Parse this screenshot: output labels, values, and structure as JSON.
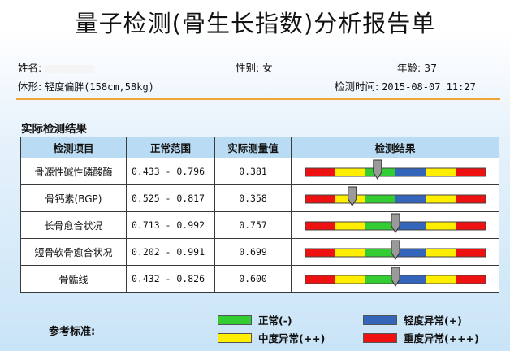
{
  "title": "量子检测(骨生长指数)分析报告单",
  "info": {
    "name_label": "姓名:",
    "gender": "性别: 女",
    "age": "年龄: 37",
    "body_label": "体形:",
    "body_value": "轻度偏胖(158cm,58kg)",
    "time_label": "检测时间:",
    "time_value": "2015-08-07 11:27"
  },
  "section_title": "实际检测结果",
  "table": {
    "headers": [
      "检测项目",
      "正常范围",
      "实际测量值",
      "检测结果"
    ],
    "rows": [
      {
        "item": "骨源性碱性磷酸酶",
        "range": "0.433 - 0.796",
        "value": "0.381",
        "marker": 0.4
      },
      {
        "item": "骨钙素(BGP)",
        "range": "0.525 - 0.817",
        "value": "0.358",
        "marker": 0.26
      },
      {
        "item": "长骨愈合状况",
        "range": "0.713 - 0.992",
        "value": "0.757",
        "marker": 0.5
      },
      {
        "item": "短骨软骨愈合状况",
        "range": "0.202 - 0.991",
        "value": "0.699",
        "marker": 0.5
      },
      {
        "item": "骨骺线",
        "range": "0.432 - 0.826",
        "value": "0.600",
        "marker": 0.5
      }
    ]
  },
  "gauge_colors": [
    "#ee1111",
    "#ffee00",
    "#33cc33",
    "#3366bb",
    "#ffee00",
    "#ee1111"
  ],
  "legend": {
    "label": "参考标准:",
    "items": [
      {
        "label": "正常(-)",
        "color": "#33cc33"
      },
      {
        "label": "轻度异常(+)",
        "color": "#3366bb"
      },
      {
        "label": "中度异常(++)",
        "color": "#ffee00"
      },
      {
        "label": "重度异常(+++)",
        "color": "#ee1111"
      }
    ]
  }
}
